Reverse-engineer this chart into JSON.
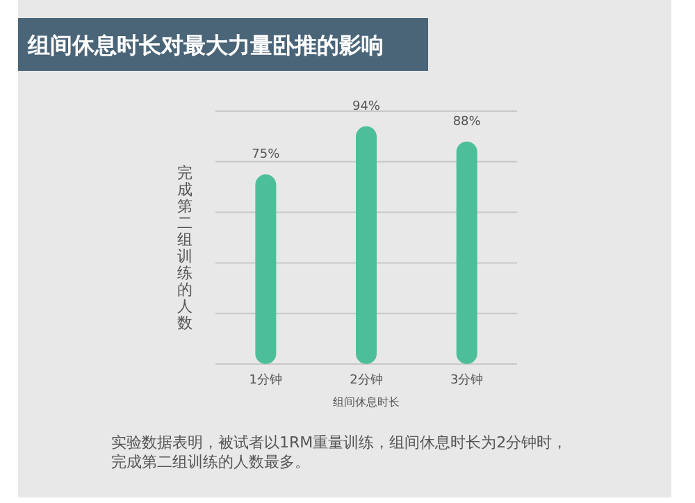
{
  "chart_data": {
    "type": "bar",
    "title": "组间休息时长对最大力量卧推的影响",
    "categories": [
      "1分钟",
      "2分钟",
      "3分钟"
    ],
    "values": [
      75,
      94,
      88
    ],
    "value_labels": [
      "75%",
      "94%",
      "88%"
    ],
    "color": "#4cbf9a",
    "xlabel": "组间休息时长",
    "ylabel": "完成第二组训练的人数",
    "ylim": [
      0,
      100
    ],
    "yticks": [
      {
        "value": 0,
        "label": null
      },
      {
        "value": 20,
        "label": null
      },
      {
        "value": 40,
        "label": null
      },
      {
        "value": 60,
        "label": null
      },
      {
        "value": 80,
        "label": null
      },
      {
        "value": 100,
        "label": null
      }
    ],
    "grid": "y",
    "annotations": [
      "实验数据表明，被试者以1RM重量训练，组间休息时长为2分钟时，",
      "完成第二组训练的人数最多。"
    ]
  }
}
